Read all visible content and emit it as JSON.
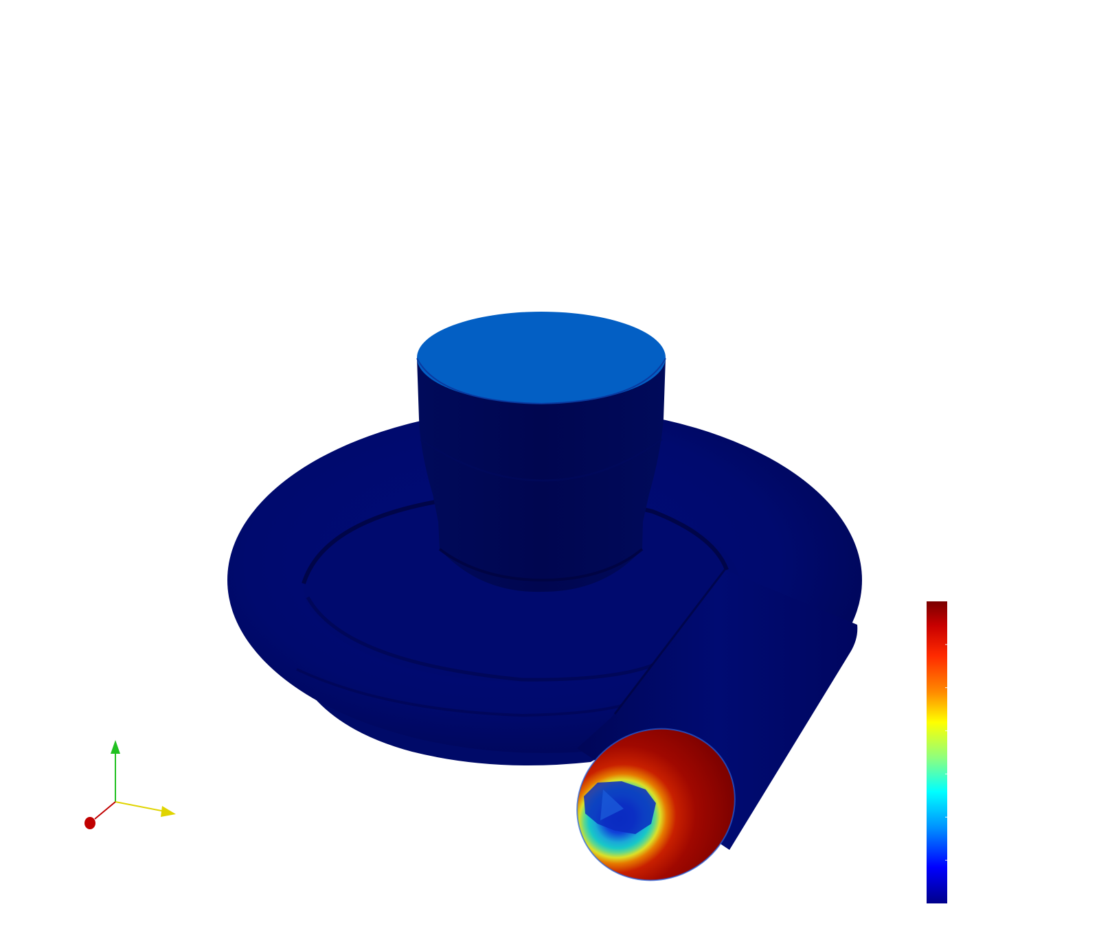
{
  "scene": {
    "background_color": "#ffffff",
    "object_base_color": "#000a6e",
    "object_shadow_color": "#000450",
    "top_cap_color": "#035fc4",
    "outlet_colors": {
      "outer": "#7a0000",
      "mid": "#c01a00",
      "orange": "#e67a00",
      "yellow": "#e8e000",
      "green": "#64d88a",
      "cyan": "#18c8c8",
      "inner": "#0a34c8"
    }
  },
  "orientation_axes": {
    "x_axis_color": "#e0d400",
    "y_axis_color": "#20c020",
    "z_axis_color": "#c00000",
    "icon": "orientation-axes-triad-icon"
  },
  "color_legend": {
    "stops": [
      "#7a0000",
      "#ff1a00",
      "#ff8000",
      "#ffff00",
      "#80ff80",
      "#00ffff",
      "#0080ff",
      "#0000ff",
      "#00007a"
    ],
    "tick_count": 6
  }
}
